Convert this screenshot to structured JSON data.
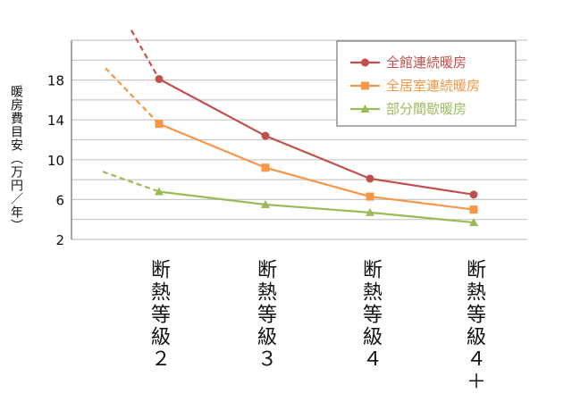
{
  "chart_data": {
    "type": "line",
    "ylabel": "暖房費目安（万円／年）",
    "categories": [
      "断熱等級２",
      "断熱等級３",
      "断熱等級４",
      "断熱等級４＋"
    ],
    "ylim": [
      2,
      22
    ],
    "yticks": [
      "2",
      "6",
      "10",
      "14",
      "18"
    ],
    "grid": true,
    "legend": "top-right",
    "series": [
      {
        "name": "全館連続暖房",
        "color": "#c0504d",
        "marker": "circle",
        "values": [
          18.1,
          12.4,
          8.1,
          6.5
        ],
        "extrapolated_start": 23.0
      },
      {
        "name": "全居室連続暖房",
        "color": "#f79646",
        "marker": "square",
        "values": [
          13.6,
          9.2,
          6.3,
          5.0
        ],
        "extrapolated_start": 19.2
      },
      {
        "name": "部分間歇暖房",
        "color": "#9bbb59",
        "marker": "triangle",
        "values": [
          6.8,
          5.5,
          4.7,
          3.7
        ],
        "extrapolated_start": 8.8
      }
    ]
  }
}
